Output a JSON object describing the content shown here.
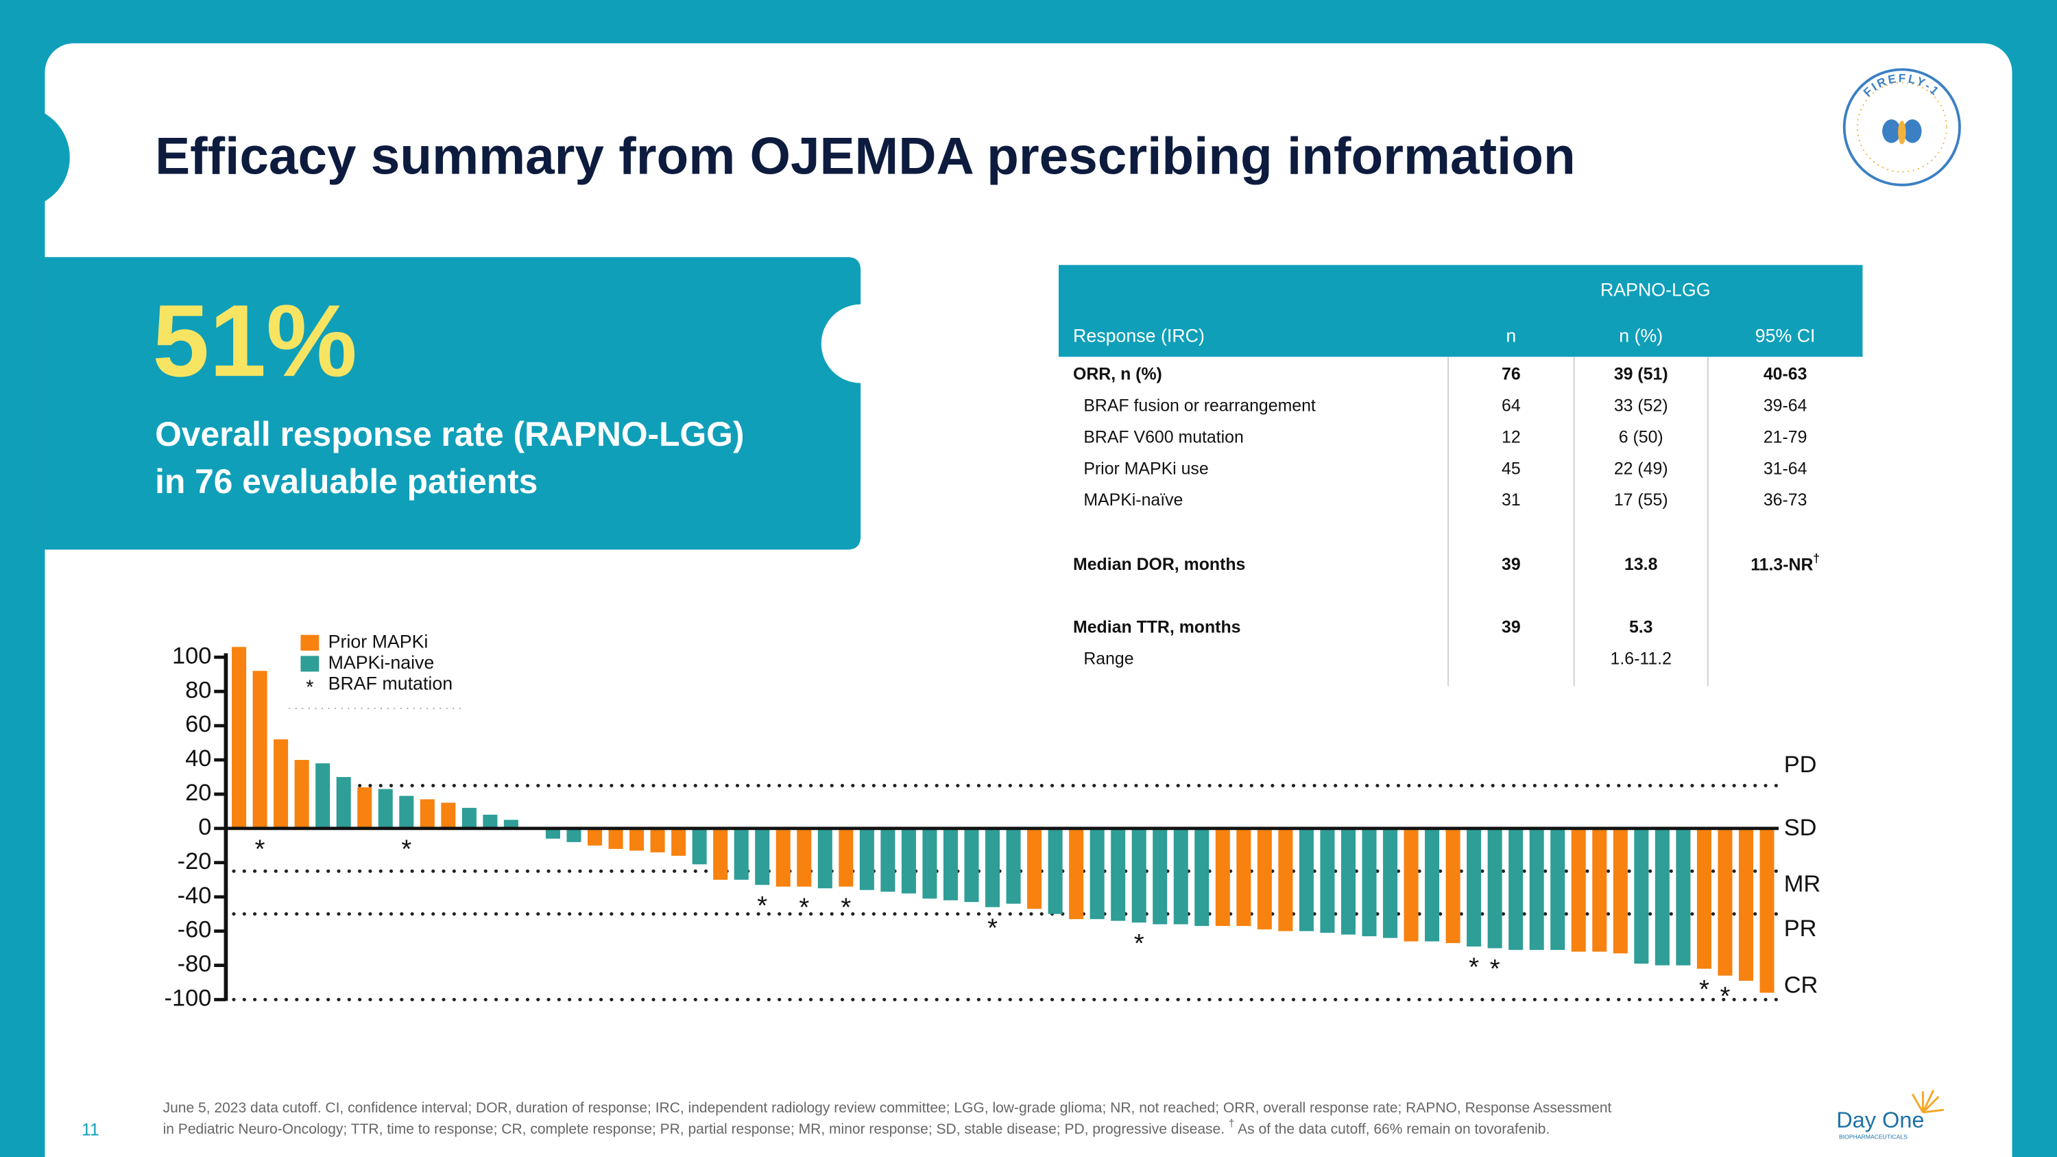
{
  "header": {
    "title": "Efficacy summary from OJEMDA prescribing information",
    "logo": "FIREFLY-1"
  },
  "callout": {
    "stat": "51%",
    "lines": [
      "Overall response rate (RAPNO-LGG)",
      "in 76 evaluable patients"
    ]
  },
  "table": {
    "group_header": "RAPNO-LGG",
    "columns": [
      "Response (IRC)",
      "n",
      "n (%)",
      "95% CI"
    ],
    "rows": [
      [
        "ORR, n (%)",
        "76",
        "39 (51)",
        "40-63"
      ],
      [
        "BRAF fusion or rearrangement",
        "64",
        "33 (52)",
        "39-64"
      ],
      [
        "BRAF V600 mutation",
        "12",
        "6 (50)",
        "21-79"
      ],
      [
        "Prior MAPKi use",
        "45",
        "22 (49)",
        "31-64"
      ],
      [
        "MAPKi-naïve",
        "31",
        "17 (55)",
        "36-73"
      ],
      [
        "Median DOR, months",
        "39",
        "13.8",
        "11.3-NR"
      ],
      [
        "Median TTR, months",
        "39",
        "5.3",
        null
      ],
      [
        "Range",
        null,
        "1.6-11.2",
        null
      ]
    ],
    "ci_footnote_mark": "†"
  },
  "chart_data": {
    "type": "waterfall",
    "series": [
      {
        "name": "Prior MAPKi",
        "color": "#f7820f"
      },
      {
        "name": "MAPKi-naive",
        "color": "#2e9e97"
      }
    ],
    "marker_symbol": "*",
    "marker_name": "BRAF mutation",
    "values": [
      106,
      92,
      52,
      40,
      38,
      30,
      24,
      23,
      19,
      17,
      15,
      12,
      8,
      5,
      0,
      -6,
      -8,
      -10,
      -12,
      -13,
      -14,
      -16,
      -21,
      -30,
      -30,
      -33,
      -34,
      -34,
      -35,
      -34,
      -36,
      -37,
      -38,
      -41,
      -42,
      -43,
      -46,
      -44,
      -47,
      -50,
      -53,
      -53,
      -54,
      -55,
      -56,
      -56,
      -57,
      -57,
      -57,
      -59,
      -60,
      -60,
      -61,
      -62,
      -63,
      -64,
      -66,
      -66,
      -67,
      -69,
      -70,
      -71,
      -71,
      -71,
      -72,
      -72,
      -73,
      -79,
      -80,
      -80,
      -82,
      -86,
      -89,
      -96
    ],
    "groups": [
      0,
      0,
      0,
      0,
      1,
      1,
      0,
      1,
      1,
      0,
      0,
      1,
      1,
      1,
      1,
      1,
      1,
      0,
      0,
      0,
      0,
      0,
      1,
      0,
      1,
      1,
      0,
      0,
      1,
      0,
      1,
      1,
      1,
      1,
      1,
      1,
      1,
      1,
      0,
      1,
      0,
      1,
      1,
      1,
      1,
      1,
      1,
      0,
      0,
      0,
      0,
      1,
      1,
      1,
      1,
      1,
      0,
      1,
      0,
      1,
      1,
      1,
      1,
      1,
      0,
      0,
      0,
      1,
      1,
      1,
      0,
      0,
      0,
      0
    ],
    "marked": [
      1,
      8,
      25,
      27,
      29,
      36,
      43,
      59,
      60,
      70,
      71
    ],
    "ylim": [
      -100,
      100
    ],
    "yticks": [
      100,
      80,
      60,
      40,
      20,
      0,
      -20,
      -40,
      -60,
      -80,
      -100
    ],
    "threshold_lines": [
      25,
      -25,
      -50,
      -100
    ],
    "response_labels": [
      "PD",
      "SD",
      "MR",
      "PR",
      "CR"
    ]
  },
  "footer": {
    "notes": [
      "June 5, 2023 data cutoff. CI, confidence interval; DOR, duration of response; IRC, independent radiology review committee; LGG, low-grade glioma; NR, not reached; ORR, overall response rate; RAPNO, Response Assessment",
      "in Pediatric Neuro-Oncology; TTR, time to response; CR, complete response; PR, partial response; MR, minor response; SD, stable disease; PD, progressive disease. ",
      "†",
      " As of the data cutoff, 66% remain on tovorafenib."
    ],
    "page": "11",
    "brand": "Day One",
    "brand_sub": "BIOPHARMACEUTICALS"
  }
}
